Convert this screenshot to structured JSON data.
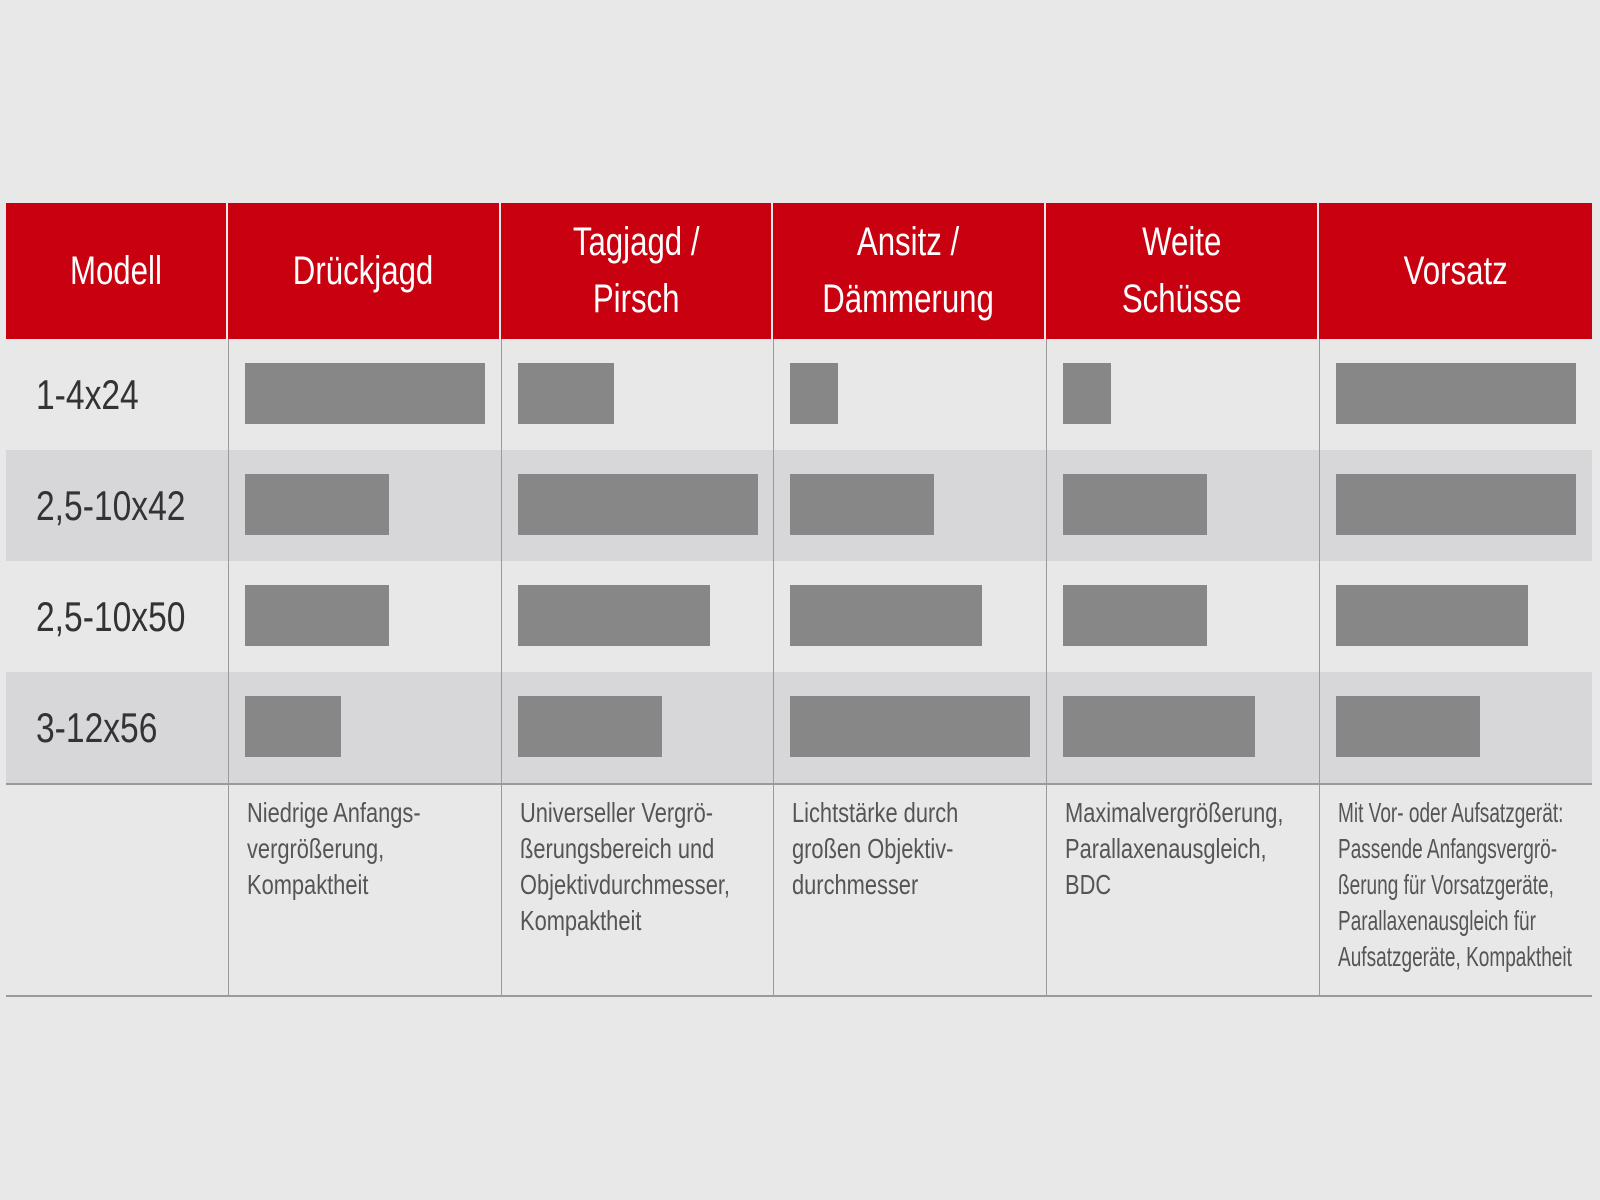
{
  "chart_data": {
    "type": "table",
    "scale": [
      1,
      5
    ],
    "columns": [
      "Modell",
      "Drückjagd",
      "Tagjagd / Pirsch",
      "Ansitz / Dämmerung",
      "Weite Schüsse",
      "Vorsatz"
    ],
    "header_lines": [
      [
        "Modell"
      ],
      [
        "Drückjagd"
      ],
      [
        "Tagjagd /",
        "Pirsch"
      ],
      [
        "Ansitz /",
        "Dämmerung"
      ],
      [
        "Weite",
        "Schüsse"
      ],
      [
        "Vorsatz"
      ]
    ],
    "rows": [
      {
        "model": "1-4x24",
        "values": [
          5,
          2,
          1,
          1,
          5
        ]
      },
      {
        "model": "2,5-10x42",
        "values": [
          3,
          5,
          3,
          3,
          5
        ]
      },
      {
        "model": "2,5-10x50",
        "values": [
          3,
          4,
          4,
          3,
          4
        ]
      },
      {
        "model": "3-12x56",
        "values": [
          2,
          3,
          5,
          4,
          3
        ]
      }
    ],
    "notes": [
      [
        "Niedrige Anfangs-",
        "vergrößerung,",
        "Kompaktheit"
      ],
      [
        "Universeller Vergrö-",
        "ßerungsbereich und",
        "Objektivdurchmesser,",
        "Kompaktheit"
      ],
      [
        "Lichtstärke durch",
        "großen Objektiv-",
        "durchmesser"
      ],
      [
        "Maximalvergrößerung,",
        "Parallaxenausgleich,",
        "BDC"
      ],
      [
        "Mit Vor- oder Aufsatzgerät:",
        "Passende Anfangsvergrö-",
        "ßerung für Vorsatzgeräte,",
        "Parallaxenausgleich für",
        "Aufsatzgeräte, Kompaktheit"
      ]
    ]
  },
  "colors": {
    "header": "#c8000f",
    "bar": "#878787",
    "row_alt": "#d7d7d9",
    "background": "#e8e8e8"
  }
}
